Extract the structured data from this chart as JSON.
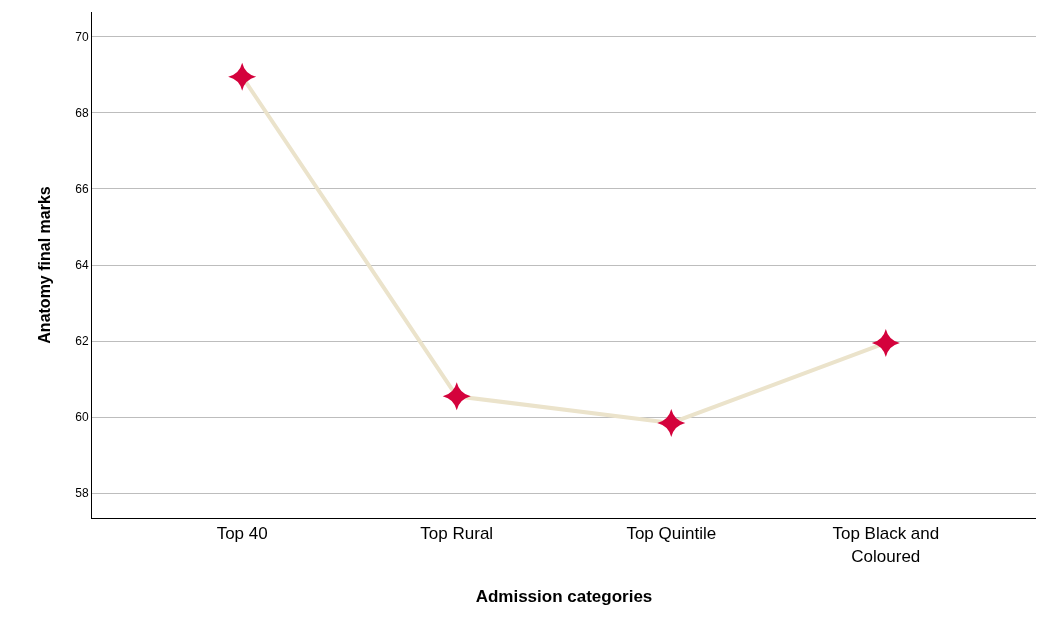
{
  "chart_data": {
    "type": "line",
    "xlabel": "Admission categories",
    "ylabel": "Anatomy final marks",
    "categories": [
      "Top 40",
      "Top Rural",
      "Top Quintile",
      "Top Black and Coloured"
    ],
    "series": [
      {
        "color": "#ebe3cb",
        "colors": [
          "#d4023c",
          "#d4023c",
          "#d4023c",
          "#d4023c"
        ],
        "values": [
          68.95,
          60.55,
          59.85,
          61.95
        ]
      }
    ],
    "ylim": [
      57.35,
      70.65
    ],
    "yticks": [
      58,
      60,
      62,
      64,
      66,
      68,
      70
    ],
    "grid": "y",
    "marker": "star",
    "line_style": "solid"
  }
}
